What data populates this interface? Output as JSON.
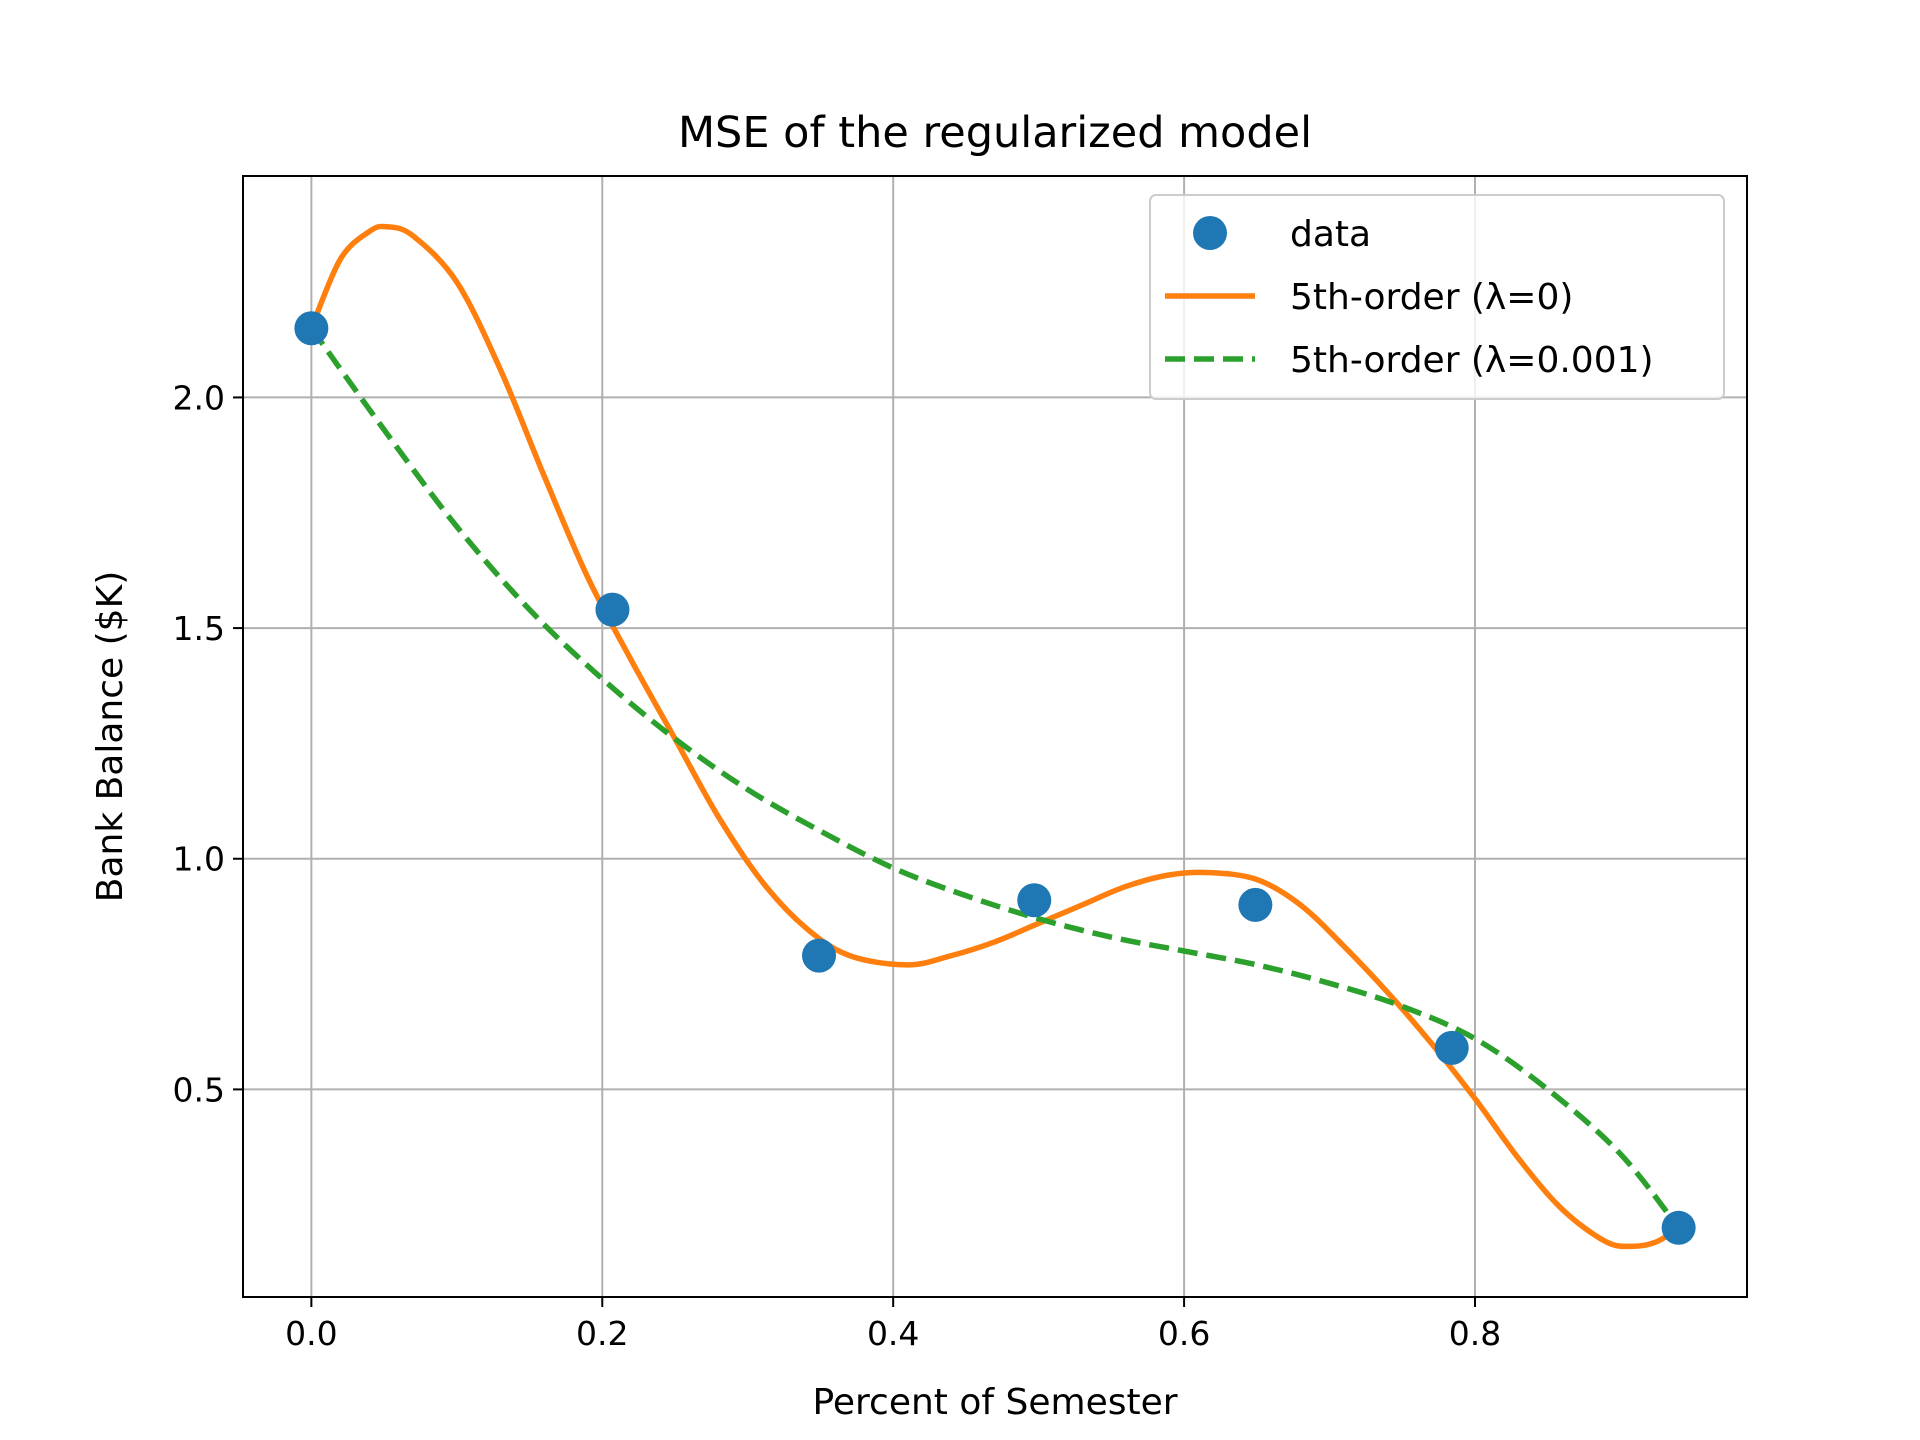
{
  "chart_data": {
    "type": "line",
    "title": "MSE of the regularized model",
    "xlabel": "Percent of Semester",
    "ylabel": "Bank Balance ($K)",
    "xlim": [
      -0.047,
      0.987
    ],
    "ylim": [
      0.05,
      2.48
    ],
    "xticks": [
      0.0,
      0.2,
      0.4,
      0.6,
      0.8
    ],
    "xtick_labels": [
      "0.0",
      "0.2",
      "0.4",
      "0.6",
      "0.8"
    ],
    "yticks": [
      0.5,
      1.0,
      1.5,
      2.0
    ],
    "ytick_labels": [
      "0.5",
      "1.0",
      "1.5",
      "2.0"
    ],
    "grid": true,
    "legend_position": "top-right",
    "colors": {
      "data": "#1f77b4",
      "lambda0": "#ff7f0e",
      "lambda001": "#2ca02c",
      "grid": "#b0b0b0"
    },
    "series": [
      {
        "name": "data",
        "kind": "scatter",
        "x": [
          0.0,
          0.207,
          0.349,
          0.497,
          0.649,
          0.784,
          0.94
        ],
        "y": [
          2.15,
          1.54,
          0.79,
          0.91,
          0.9,
          0.59,
          0.2
        ]
      },
      {
        "name": "5th-order (λ=0)",
        "kind": "line",
        "style": "solid",
        "x": [
          0.0,
          0.02,
          0.04,
          0.052,
          0.07,
          0.1,
          0.13,
          0.16,
          0.19,
          0.22,
          0.25,
          0.28,
          0.31,
          0.34,
          0.37,
          0.41,
          0.44,
          0.47,
          0.5,
          0.53,
          0.56,
          0.59,
          0.617,
          0.65,
          0.68,
          0.71,
          0.74,
          0.77,
          0.8,
          0.83,
          0.86,
          0.89,
          0.909,
          0.925,
          0.94
        ],
        "y": [
          2.15,
          2.3,
          2.36,
          2.37,
          2.35,
          2.25,
          2.06,
          1.83,
          1.61,
          1.43,
          1.26,
          1.09,
          0.95,
          0.85,
          0.79,
          0.77,
          0.79,
          0.82,
          0.86,
          0.9,
          0.94,
          0.965,
          0.97,
          0.955,
          0.9,
          0.81,
          0.71,
          0.6,
          0.48,
          0.35,
          0.24,
          0.17,
          0.16,
          0.17,
          0.2
        ]
      },
      {
        "name": "5th-order (λ=0.001)",
        "kind": "line",
        "style": "dashed",
        "x": [
          0.0,
          0.05,
          0.1,
          0.15,
          0.2,
          0.25,
          0.3,
          0.35,
          0.4,
          0.45,
          0.5,
          0.55,
          0.6,
          0.65,
          0.7,
          0.75,
          0.8,
          0.85,
          0.9,
          0.94
        ],
        "y": [
          2.15,
          1.93,
          1.72,
          1.54,
          1.39,
          1.26,
          1.15,
          1.06,
          0.98,
          0.92,
          0.87,
          0.83,
          0.8,
          0.77,
          0.73,
          0.68,
          0.61,
          0.5,
          0.36,
          0.2
        ]
      }
    ]
  }
}
